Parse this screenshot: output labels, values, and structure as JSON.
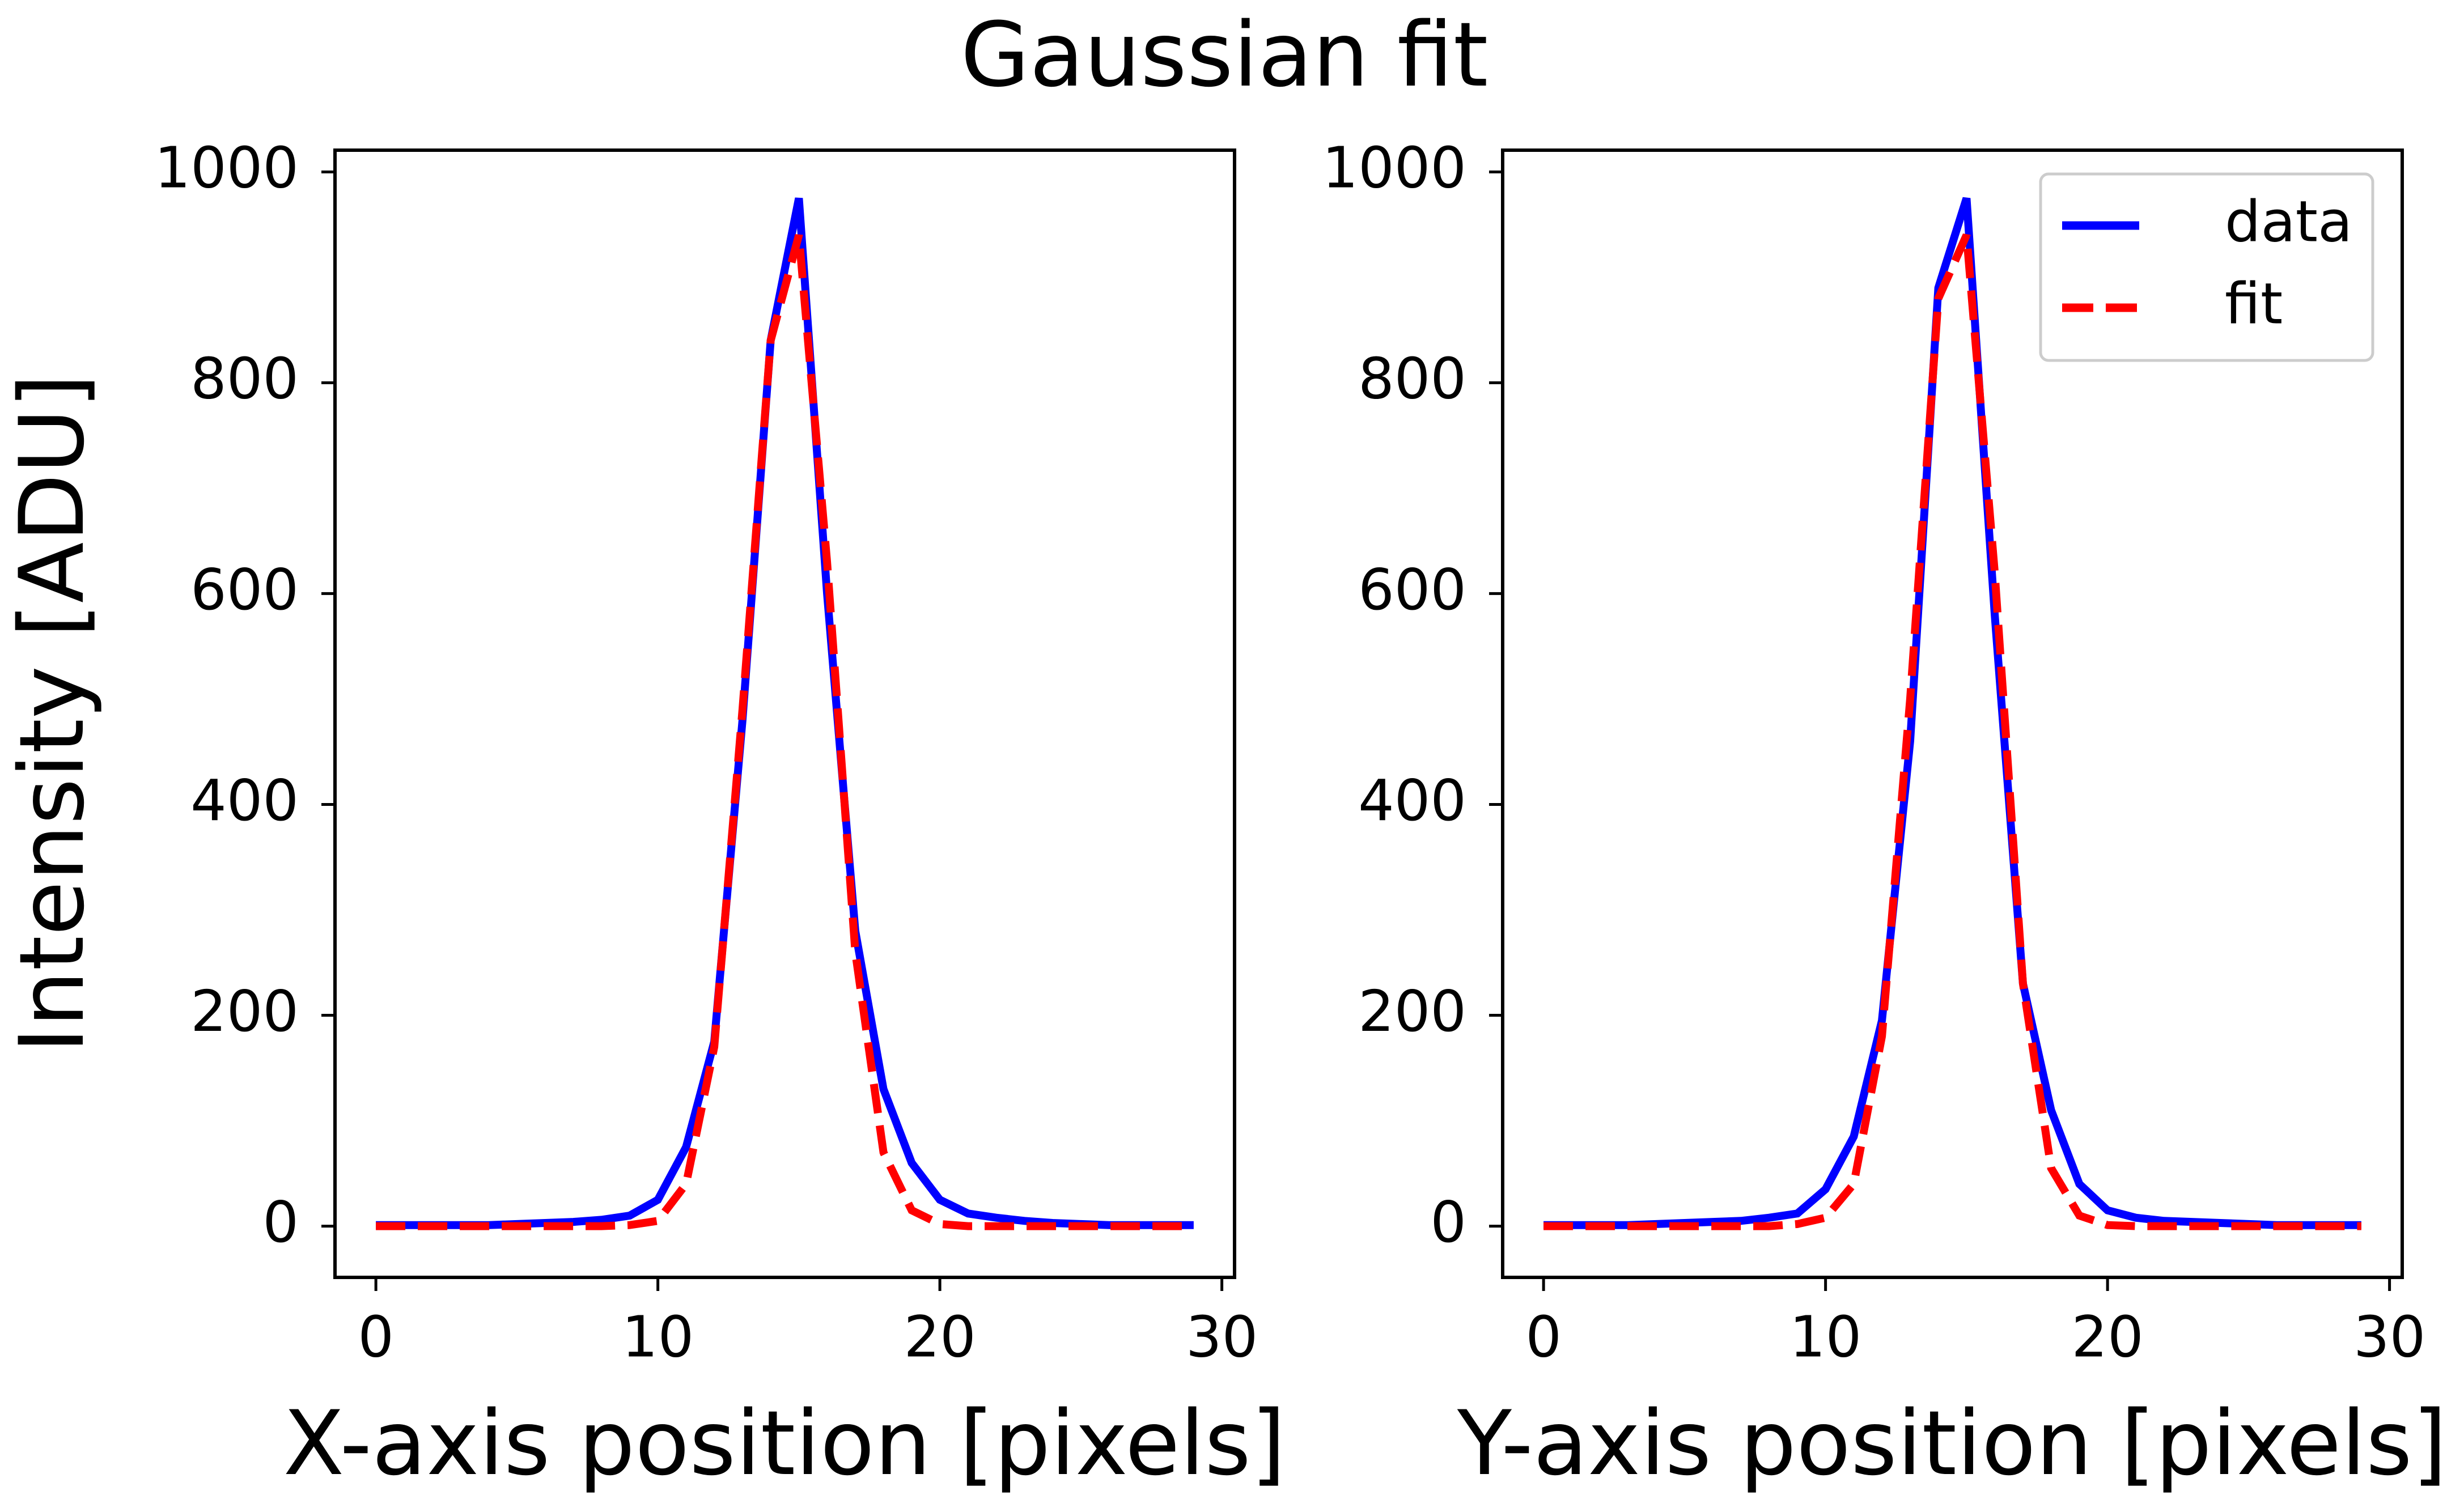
{
  "title": "Gaussian fit",
  "chart_data": [
    {
      "type": "line",
      "title": "",
      "xlabel": "X-axis position [pixels]",
      "ylabel": "Intensity [ADU]",
      "xlim": [
        -1.45,
        30.45
      ],
      "ylim": [
        -48.6,
        1020.6
      ],
      "xticks": [
        0,
        10,
        20,
        30
      ],
      "yticks": [
        0,
        200,
        400,
        600,
        800,
        1000
      ],
      "grid": false,
      "legend": null,
      "x": [
        0,
        1,
        2,
        3,
        4,
        5,
        6,
        7,
        8,
        9,
        10,
        11,
        12,
        13,
        14,
        15,
        16,
        17,
        18,
        19,
        20,
        21,
        22,
        23,
        24,
        25,
        26,
        27,
        28,
        29
      ],
      "series": [
        {
          "name": "data",
          "color": "#0000ff",
          "style": "solid",
          "values": [
            1,
            1,
            1,
            1,
            1,
            2,
            3,
            4,
            6,
            10,
            25,
            75,
            175,
            480,
            840,
            975,
            600,
            280,
            130,
            60,
            25,
            12,
            8,
            5,
            3,
            2,
            1,
            1,
            1,
            1
          ]
        },
        {
          "name": "fit",
          "color": "#ff0000",
          "style": "dashed",
          "values": [
            0,
            0,
            0,
            0,
            0,
            0,
            0,
            0,
            0,
            1,
            5,
            40,
            170,
            490,
            840,
            940,
            630,
            260,
            70,
            15,
            2,
            0,
            0,
            0,
            0,
            0,
            0,
            0,
            0,
            0
          ]
        }
      ]
    },
    {
      "type": "line",
      "title": "",
      "xlabel": "Y-axis position [pixels]",
      "ylabel": "",
      "xlim": [
        -1.45,
        30.45
      ],
      "ylim": [
        -48.6,
        1020.6
      ],
      "xticks": [
        0,
        10,
        20,
        30
      ],
      "yticks": [
        0,
        200,
        400,
        600,
        800,
        1000
      ],
      "grid": false,
      "legend": "top-right",
      "x": [
        0,
        1,
        2,
        3,
        4,
        5,
        6,
        7,
        8,
        9,
        10,
        11,
        12,
        13,
        14,
        15,
        16,
        17,
        18,
        19,
        20,
        21,
        22,
        23,
        24,
        25,
        26,
        27,
        28,
        29
      ],
      "series": [
        {
          "name": "data",
          "color": "#0000ff",
          "style": "solid",
          "values": [
            1,
            1,
            1,
            1,
            2,
            3,
            4,
            5,
            8,
            12,
            35,
            85,
            195,
            460,
            890,
            975,
            580,
            230,
            110,
            40,
            15,
            8,
            5,
            4,
            3,
            2,
            1,
            1,
            1,
            1
          ]
        },
        {
          "name": "fit",
          "color": "#ff0000",
          "style": "dashed",
          "values": [
            0,
            0,
            0,
            0,
            0,
            0,
            0,
            0,
            0,
            2,
            8,
            40,
            180,
            500,
            880,
            940,
            620,
            230,
            55,
            10,
            1,
            0,
            0,
            0,
            0,
            0,
            0,
            0,
            0,
            0
          ]
        }
      ]
    }
  ]
}
